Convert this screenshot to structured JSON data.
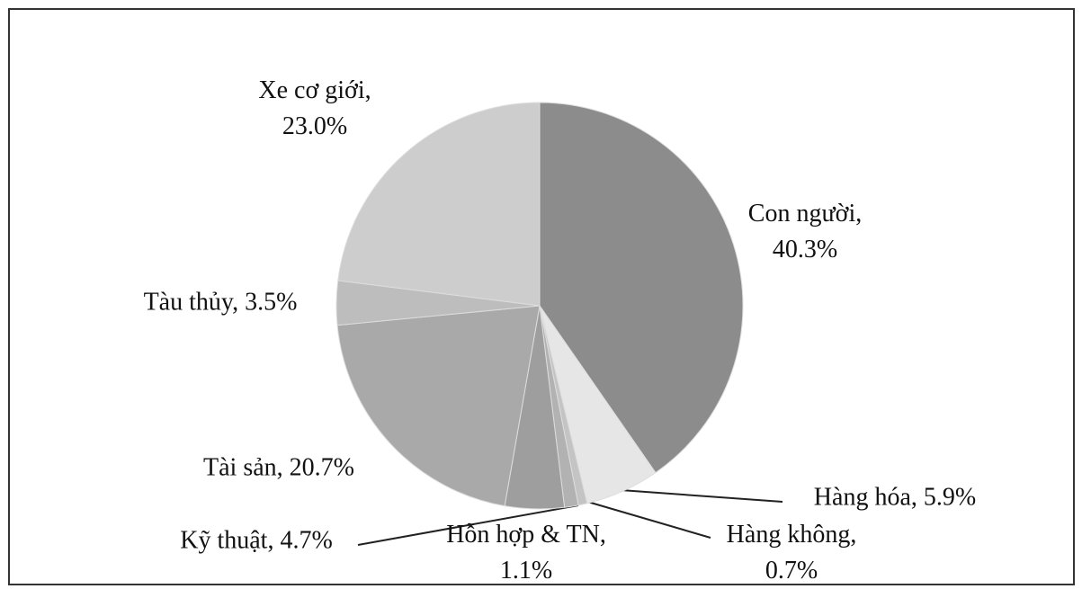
{
  "chart_data": {
    "type": "pie",
    "values": [
      40.3,
      5.9,
      0.7,
      1.1,
      4.7,
      20.7,
      3.5,
      23.0
    ],
    "value_labels": [
      "Con người, 40.3%",
      "Hàng hóa, 5.9%",
      "Hàng không, 0.7%",
      "Hỗn hợp & TN, 1.1%",
      "Kỹ thuật, 4.7%",
      "Tài sản, 20.7%",
      "Tàu thủy, 3.5%",
      "Xe cơ giới, 23.0%"
    ],
    "colors": [
      "#8c8c8c",
      "#e6e6e6",
      "#c4c4c4",
      "#b2b2b2",
      "#9e9e9e",
      "#a9a9a9",
      "#bdbdbd",
      "#cdcdcd"
    ]
  }
}
